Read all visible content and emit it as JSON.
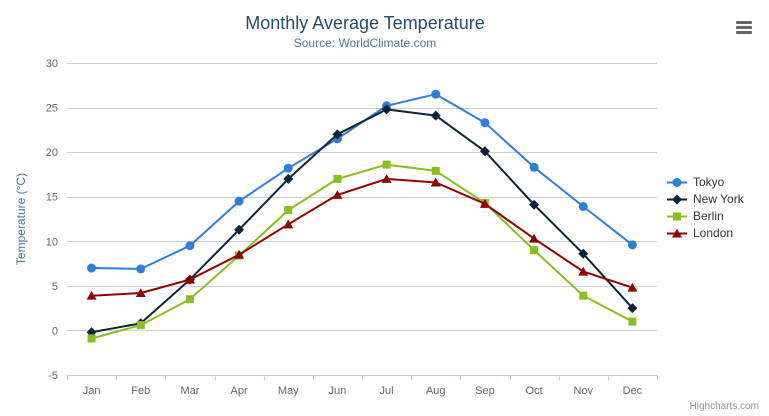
{
  "chart_data": {
    "type": "line",
    "title": "Monthly Average Temperature",
    "subtitle": "Source: WorldClimate.com",
    "categories": [
      "Jan",
      "Feb",
      "Mar",
      "Apr",
      "May",
      "Jun",
      "Jul",
      "Aug",
      "Sep",
      "Oct",
      "Nov",
      "Dec"
    ],
    "xlabel": "",
    "ylabel": "Temperature (°C)",
    "ylim": [
      -5,
      30
    ],
    "y_tick_interval": 5,
    "grid": true,
    "legend_position": "right",
    "series": [
      {
        "name": "Tokyo",
        "color": "#2f7ed8",
        "marker": "circle",
        "values": [
          7.0,
          6.9,
          9.5,
          14.5,
          18.2,
          21.5,
          25.2,
          26.5,
          23.3,
          18.3,
          13.9,
          9.6
        ]
      },
      {
        "name": "New York",
        "color": "#0d233a",
        "marker": "diamond",
        "values": [
          -0.2,
          0.8,
          5.7,
          11.3,
          17.0,
          22.0,
          24.8,
          24.1,
          20.1,
          14.1,
          8.6,
          2.5
        ]
      },
      {
        "name": "Berlin",
        "color": "#8bbc21",
        "marker": "square",
        "values": [
          -0.9,
          0.6,
          3.5,
          8.4,
          13.5,
          17.0,
          18.6,
          17.9,
          14.3,
          9.0,
          3.9,
          1.0
        ]
      },
      {
        "name": "London",
        "color": "#910000",
        "marker": "triangle",
        "values": [
          3.9,
          4.2,
          5.7,
          8.5,
          11.9,
          15.2,
          17.0,
          16.6,
          14.2,
          10.3,
          6.6,
          4.8
        ]
      }
    ]
  },
  "credit": "Highcharts.com",
  "palette": {
    "title_color": "#274b6d",
    "subtitle_color": "#4d759e",
    "axis_title_color": "#4d759e",
    "axis_label_color": "#666666",
    "axis_line_color": "#c0d0e0",
    "grid_line_color": "#d0d0d0",
    "legend_text_color": "#333333",
    "credit_color": "#909090",
    "menu_icon_color": "#666666",
    "background": "#ffffff"
  }
}
